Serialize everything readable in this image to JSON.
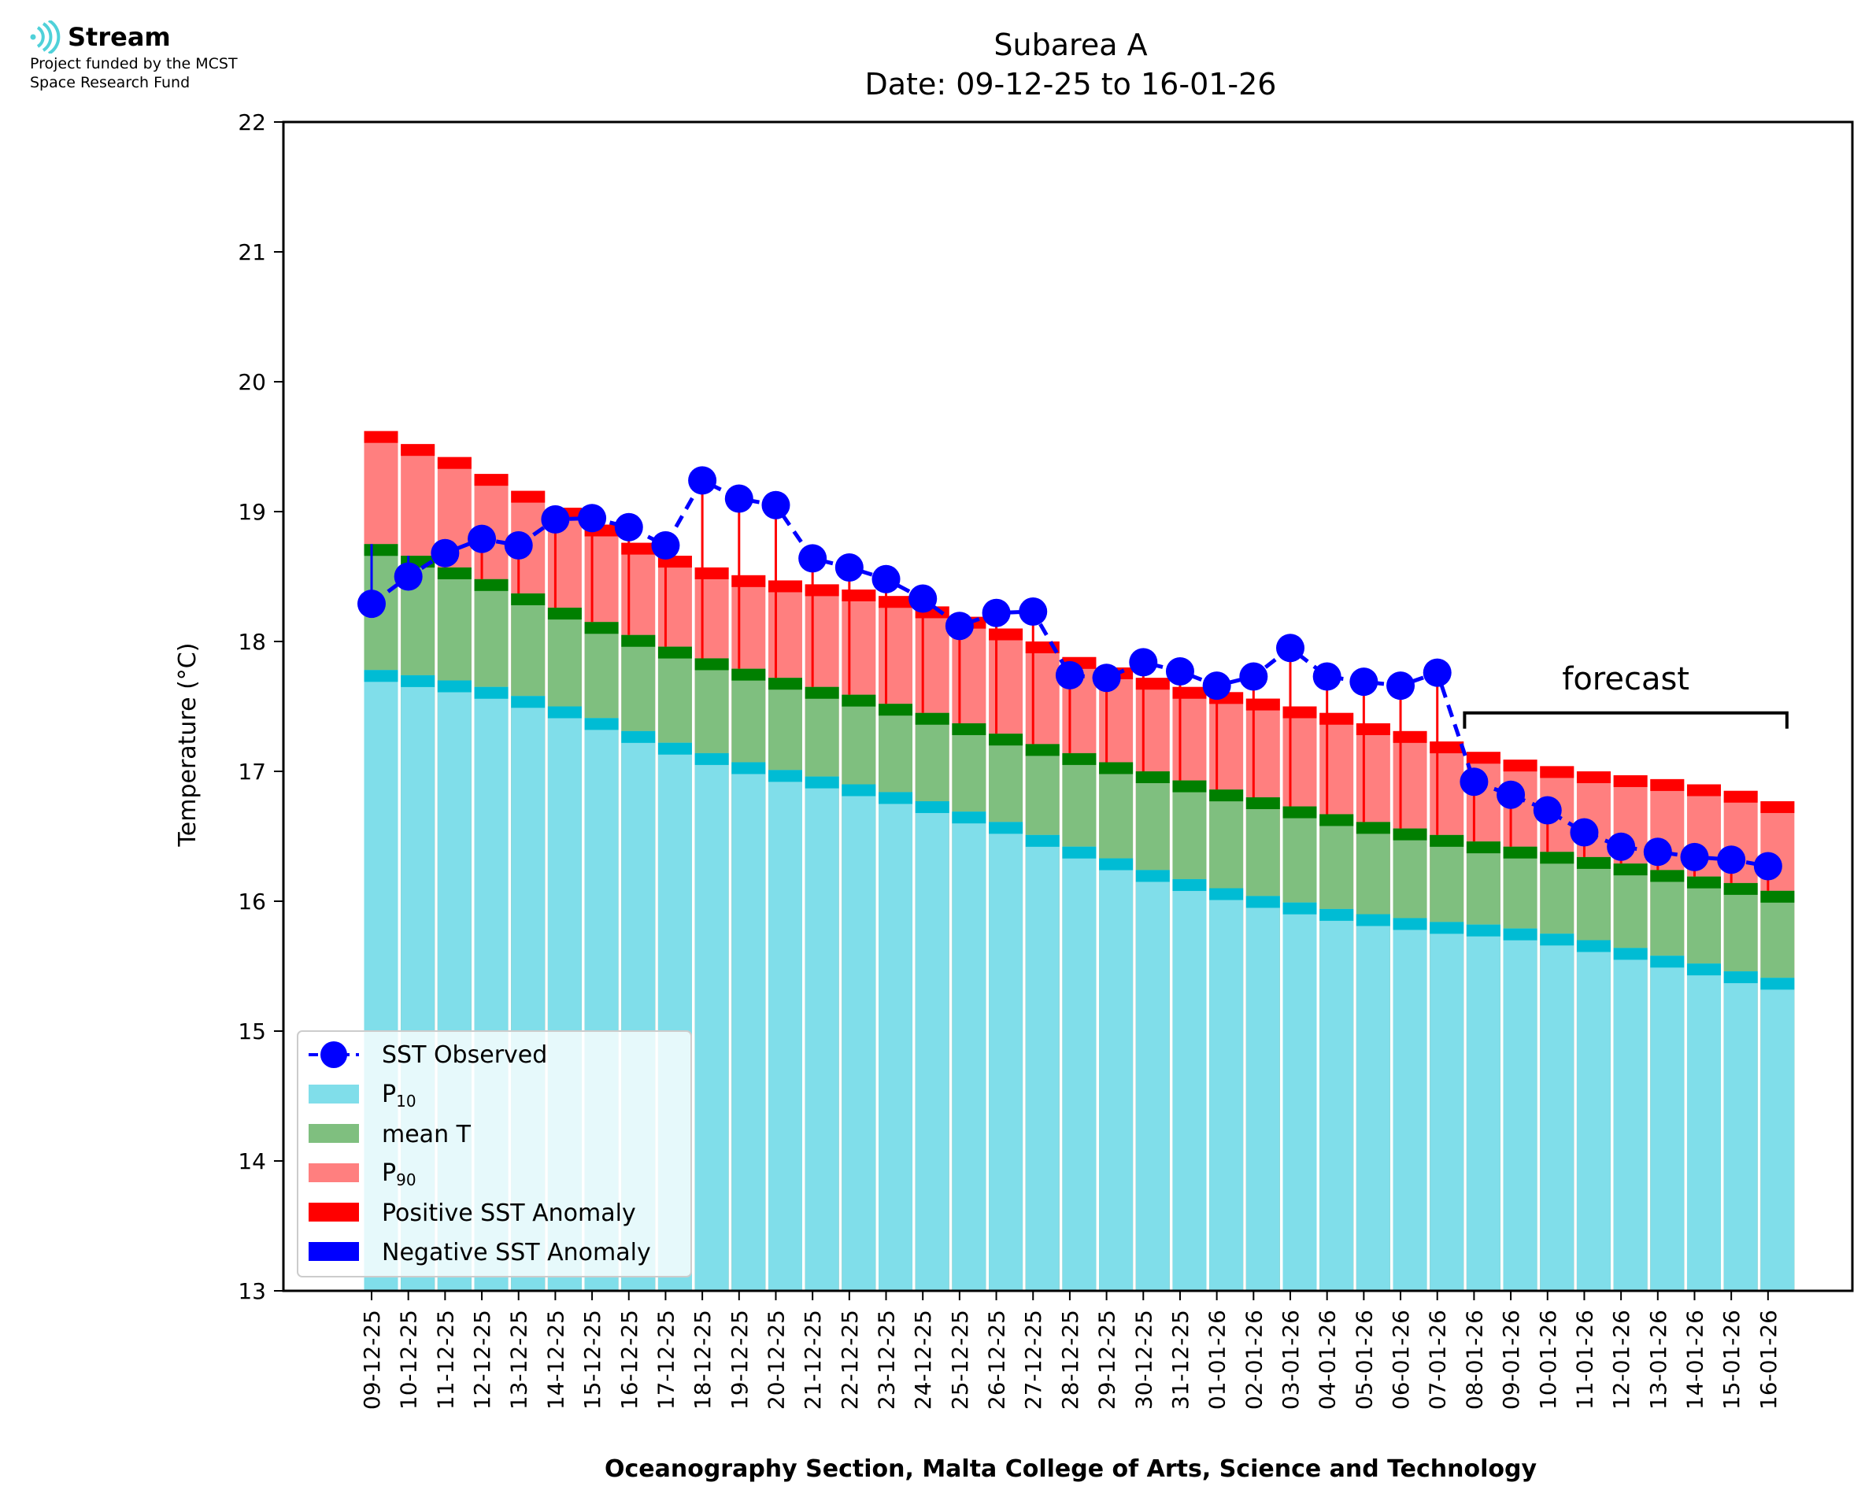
{
  "logo": {
    "name": "Stream",
    "funding_line1": "Project funded by the MCST",
    "funding_line2": "Space Research Fund"
  },
  "colors": {
    "p10": "#80deea",
    "p10_edge": "#00bcd4",
    "mean": "#7fbf7f",
    "mean_edge": "#007f00",
    "p90": "#ff7f7f",
    "p90_edge": "#ff0000",
    "observed": "#0000ff",
    "pos_anomaly": "#ff0000",
    "neg_anomaly": "#0000ff"
  },
  "chart_data": {
    "type": "bar",
    "title": "Subarea A",
    "subtitle": "Date: 09-12-25 to 16-01-26",
    "xlabel": "Oceanography Section, Malta College of Arts, Science and Technology",
    "ylabel": "Temperature (°C)",
    "ylim": [
      13,
      22
    ],
    "yticks": [
      13,
      14,
      15,
      16,
      17,
      18,
      19,
      20,
      21,
      22
    ],
    "grid": false,
    "legend_position": "bottom-left",
    "categories": [
      "09-12-25",
      "10-12-25",
      "11-12-25",
      "12-12-25",
      "13-12-25",
      "14-12-25",
      "15-12-25",
      "16-12-25",
      "17-12-25",
      "18-12-25",
      "19-12-25",
      "20-12-25",
      "21-12-25",
      "22-12-25",
      "23-12-25",
      "24-12-25",
      "25-12-25",
      "26-12-25",
      "27-12-25",
      "28-12-25",
      "29-12-25",
      "30-12-25",
      "31-12-25",
      "01-01-26",
      "02-01-26",
      "03-01-26",
      "04-01-26",
      "05-01-26",
      "06-01-26",
      "07-01-26",
      "08-01-26",
      "09-01-26",
      "10-01-26",
      "11-01-26",
      "12-01-26",
      "13-01-26",
      "14-01-26",
      "15-01-26",
      "16-01-26"
    ],
    "series": [
      {
        "name": "P10",
        "values": [
          17.78,
          17.74,
          17.7,
          17.65,
          17.58,
          17.5,
          17.41,
          17.31,
          17.22,
          17.14,
          17.07,
          17.01,
          16.96,
          16.9,
          16.84,
          16.77,
          16.69,
          16.61,
          16.51,
          16.42,
          16.33,
          16.24,
          16.17,
          16.1,
          16.04,
          15.99,
          15.94,
          15.9,
          15.87,
          15.84,
          15.82,
          15.79,
          15.75,
          15.7,
          15.64,
          15.58,
          15.52,
          15.46,
          15.41
        ]
      },
      {
        "name": "mean T",
        "values": [
          18.75,
          18.66,
          18.57,
          18.48,
          18.37,
          18.26,
          18.15,
          18.05,
          17.96,
          17.87,
          17.79,
          17.72,
          17.65,
          17.59,
          17.52,
          17.45,
          17.37,
          17.29,
          17.21,
          17.14,
          17.07,
          17.0,
          16.93,
          16.86,
          16.8,
          16.73,
          16.67,
          16.61,
          16.56,
          16.51,
          16.46,
          16.42,
          16.38,
          16.34,
          16.29,
          16.24,
          16.19,
          16.14,
          16.08
        ]
      },
      {
        "name": "P90",
        "values": [
          19.62,
          19.52,
          19.42,
          19.29,
          19.16,
          19.03,
          18.9,
          18.76,
          18.66,
          18.57,
          18.51,
          18.47,
          18.44,
          18.4,
          18.35,
          18.27,
          18.19,
          18.1,
          18.0,
          17.88,
          17.8,
          17.72,
          17.65,
          17.61,
          17.56,
          17.5,
          17.45,
          17.37,
          17.31,
          17.23,
          17.15,
          17.09,
          17.04,
          17.0,
          16.97,
          16.94,
          16.9,
          16.85,
          16.77
        ]
      },
      {
        "name": "SST Observed",
        "values": [
          18.29,
          18.5,
          18.68,
          18.79,
          18.74,
          18.94,
          18.95,
          18.88,
          18.74,
          19.24,
          19.1,
          19.05,
          18.64,
          18.57,
          18.48,
          18.33,
          18.12,
          18.22,
          18.23,
          17.74,
          17.72,
          17.84,
          17.77,
          17.66,
          17.73,
          17.95,
          17.73,
          17.69,
          17.66,
          17.76,
          16.92,
          16.82,
          16.7,
          16.53,
          16.42,
          16.38,
          16.34,
          16.32,
          16.27
        ]
      }
    ],
    "forecast_label": "forecast",
    "forecast_range": [
      "08-01-26",
      "16-01-26"
    ],
    "legend": {
      "observed": "SST Observed",
      "p10_main": "P",
      "p10_sub": "10",
      "mean": "mean T",
      "p90_main": "P",
      "p90_sub": "90",
      "pos": "Positive SST Anomaly",
      "neg": "Negative SST Anomaly"
    }
  }
}
